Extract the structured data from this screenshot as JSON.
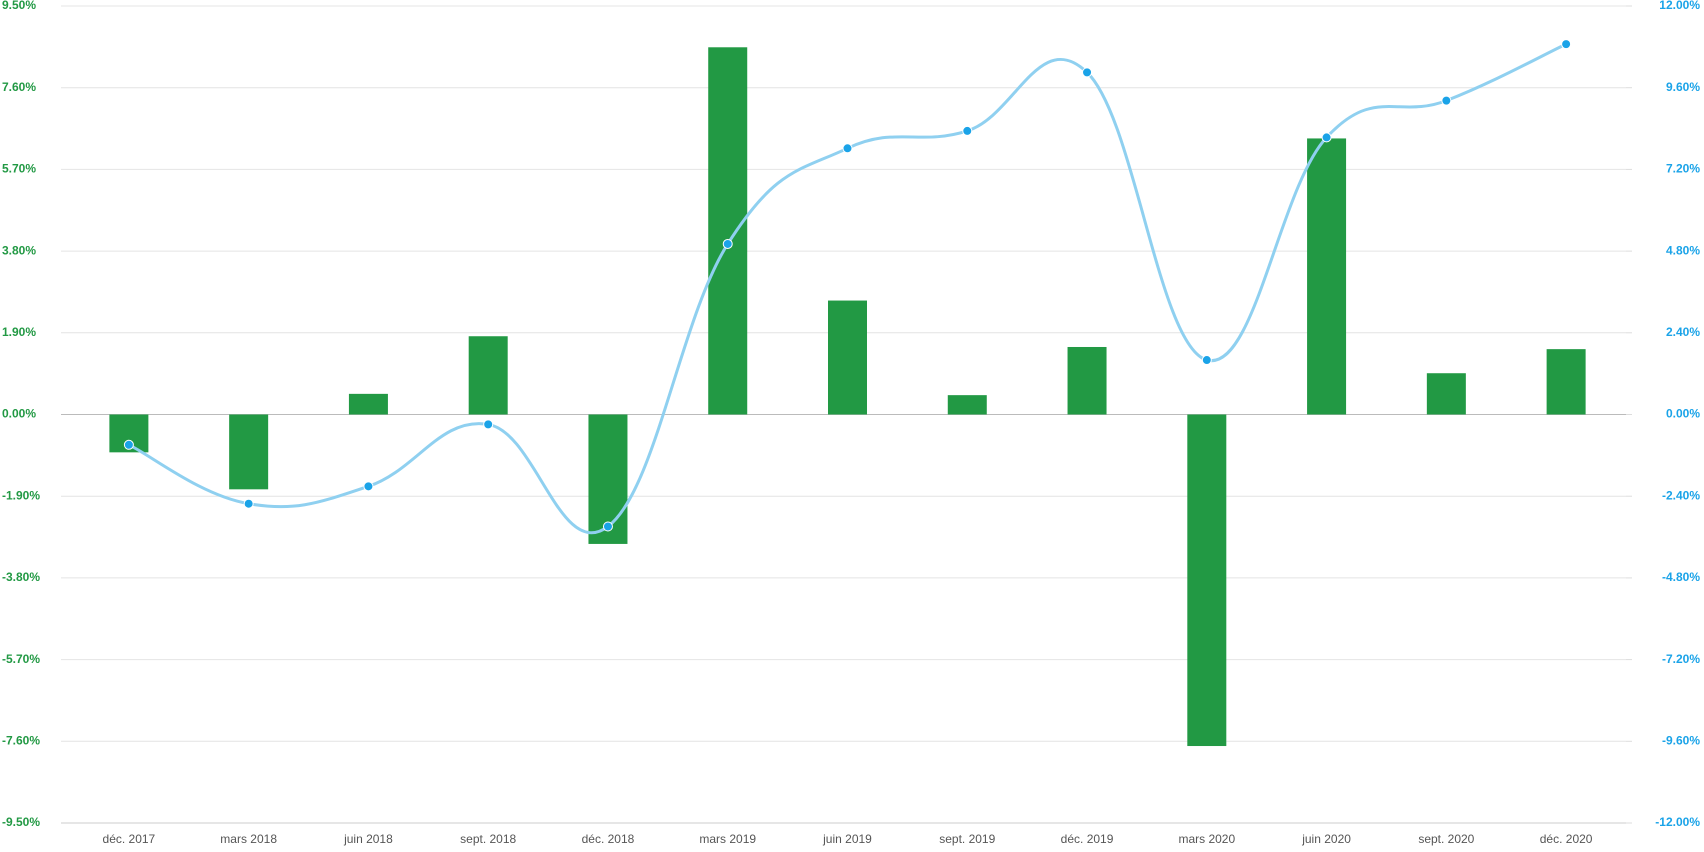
{
  "chart_data": {
    "type": "bar-line",
    "categories": [
      "déc. 2017",
      "mars 2018",
      "juin 2018",
      "sept. 2018",
      "déc. 2018",
      "mars 2019",
      "juin 2019",
      "sept. 2019",
      "déc. 2019",
      "mars 2020",
      "juin 2020",
      "sept. 2020",
      "déc. 2020"
    ],
    "series": [
      {
        "type": "bar",
        "color": "#229944",
        "values": [
          -0.88,
          -1.74,
          0.48,
          1.82,
          -3.01,
          8.54,
          2.65,
          0.45,
          1.57,
          -7.71,
          6.42,
          0.96,
          1.52
        ]
      },
      {
        "type": "line",
        "axis": "y2",
        "color": "#8fd0f0",
        "marker_color": "#1aa3e8",
        "values": [
          -0.89,
          -2.62,
          -2.11,
          -0.29,
          -3.29,
          5.01,
          7.82,
          8.33,
          10.05,
          1.6,
          8.14,
          9.22,
          10.88
        ]
      }
    ],
    "ylim": [
      -9.5,
      9.5
    ],
    "yticks": [
      {
        "value": -9.5,
        "label": "-9.50%"
      },
      {
        "value": -7.6,
        "label": "-7.60%"
      },
      {
        "value": -5.7,
        "label": "-5.70%"
      },
      {
        "value": -3.8,
        "label": "-3.80%"
      },
      {
        "value": -1.9,
        "label": "-1.90%"
      },
      {
        "value": 0,
        "label": "0.00%"
      },
      {
        "value": 1.9,
        "label": "1.90%"
      },
      {
        "value": 3.8,
        "label": "3.80%"
      },
      {
        "value": 5.7,
        "label": "5.70%"
      },
      {
        "value": 7.6,
        "label": "7.60%"
      },
      {
        "value": 9.5,
        "label": "9.50%"
      }
    ],
    "y2lim": [
      -12,
      12
    ],
    "y2ticks": [
      {
        "value": -12,
        "label": "-12.00%"
      },
      {
        "value": -9.6,
        "label": "-9.60%"
      },
      {
        "value": -7.2,
        "label": "-7.20%"
      },
      {
        "value": -4.8,
        "label": "-4.80%"
      },
      {
        "value": -2.4,
        "label": "-2.40%"
      },
      {
        "value": 0,
        "label": "0.00%"
      },
      {
        "value": 2.4,
        "label": "2.40%"
      },
      {
        "value": 4.8,
        "label": "4.80%"
      },
      {
        "value": 7.2,
        "label": "7.20%"
      },
      {
        "value": 9.6,
        "label": "9.60%"
      },
      {
        "value": 12,
        "label": "12.00%"
      }
    ],
    "grid": true,
    "yticks_color": "#229944",
    "y2ticks_color": "#1aa3e8"
  }
}
